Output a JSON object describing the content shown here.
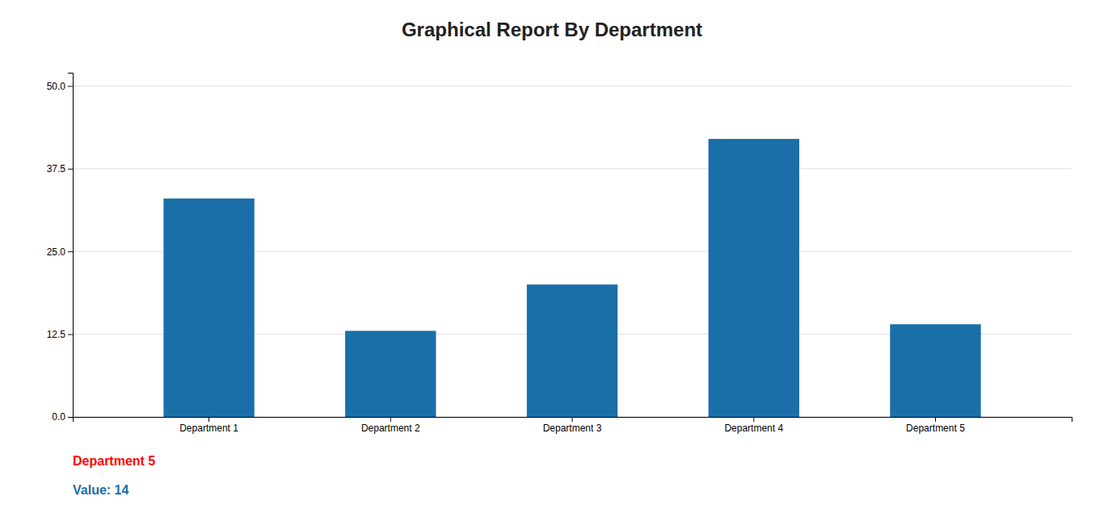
{
  "chart_data": {
    "type": "bar",
    "title": "Graphical Report By Department",
    "categories": [
      "Department 1",
      "Department 2",
      "Department 3",
      "Department 4",
      "Department 5"
    ],
    "values": [
      33,
      13,
      20,
      42,
      14
    ],
    "color": "#1a6fa8",
    "ylim": [
      0,
      52
    ],
    "yticks": [
      {
        "value": 0,
        "label": "0.0"
      },
      12.5,
      {
        "value": 25,
        "label": "25.0"
      },
      37.5,
      {
        "value": 50,
        "label": "50.0"
      }
    ],
    "grid": true,
    "annotations": [
      {
        "text": "Department 5",
        "color": "#ff0000"
      },
      {
        "text": "Value: 14",
        "color": "#1a6fa8"
      }
    ]
  }
}
